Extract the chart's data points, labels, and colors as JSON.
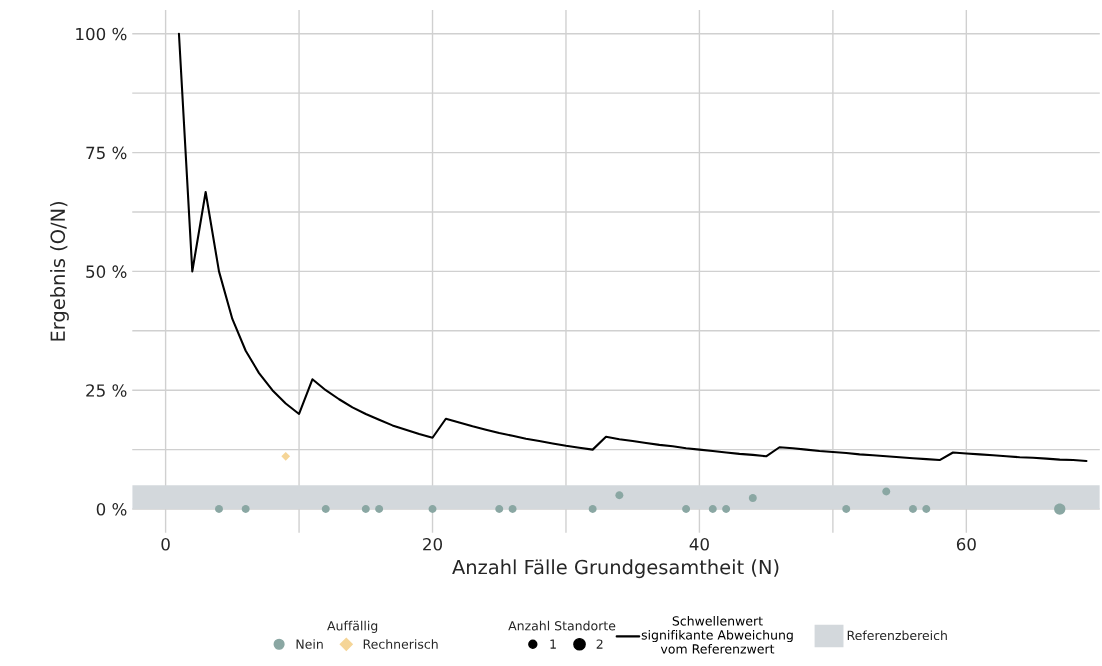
{
  "chart_data": {
    "type": "bubble",
    "xlabel": "Anzahl Fälle Grundgesamtheit (N)",
    "ylabel": "Ergebnis (O/N)",
    "legend_title": "Auffällig",
    "annotations": [
      "Anzahl Standorte"
    ],
    "xlim": [
      -2.5,
      70
    ],
    "xticks": [
      0,
      {
        "value": 10,
        "label": null
      },
      20,
      {
        "value": 30,
        "label": null
      },
      40,
      {
        "value": 50,
        "label": null
      },
      60
    ],
    "ylim": [
      -5,
      105
    ],
    "yticks": [
      {
        "value": 0,
        "label": "0 %"
      },
      {
        "value": 12.5,
        "label": null
      },
      {
        "value": 25,
        "label": "25 %"
      },
      {
        "value": 37.5,
        "label": null
      },
      {
        "value": 50,
        "label": "50 %"
      },
      {
        "value": 62.5,
        "label": null
      },
      {
        "value": 75,
        "label": "75 %"
      },
      {
        "value": 87.5,
        "label": null
      },
      {
        "value": 100,
        "label": "100 %"
      }
    ],
    "grid": true,
    "legend": "bottom",
    "size_legend": [
      1,
      2
    ],
    "bands": [
      {
        "axis": "y",
        "from": 0,
        "to": 5,
        "label": "Referenzbereich",
        "color": "#d3d8dc"
      }
    ],
    "series": [
      {
        "name": "Nein",
        "marker": "circle",
        "color": "#8aa7a3",
        "x": [
          4,
          6,
          12,
          15,
          16,
          20,
          25,
          26,
          32,
          34,
          39,
          41,
          42,
          44,
          51,
          54,
          56,
          57,
          67
        ],
        "values": [
          0,
          0,
          0,
          0,
          0,
          0,
          0,
          0,
          0,
          2.9,
          0,
          0,
          0,
          2.3,
          0,
          3.7,
          0,
          0,
          0
        ],
        "sizes": [
          1,
          1,
          1,
          1,
          1,
          1,
          1,
          1,
          1,
          1,
          1,
          1,
          1,
          1,
          1,
          1,
          1,
          1,
          2
        ]
      },
      {
        "name": "Rechnerisch",
        "marker": "diamond",
        "color": "#f5d597",
        "x": [
          9
        ],
        "values": [
          11.1
        ],
        "sizes": [
          1
        ]
      },
      {
        "name": "Schwellenwert\nsignifikante Abweichung\nvom Referenzwert",
        "type": "line",
        "color": "#000000",
        "line_style": "solid",
        "x": [
          1,
          2,
          3,
          4,
          5,
          6,
          7,
          8,
          9,
          10,
          11,
          12,
          13,
          14,
          15,
          16,
          17,
          18,
          19,
          20,
          21,
          22,
          23,
          24,
          25,
          26,
          27,
          28,
          29,
          30,
          31,
          32,
          33,
          34,
          35,
          36,
          37,
          38,
          39,
          40,
          41,
          42,
          43,
          44,
          45,
          46,
          47,
          48,
          49,
          50,
          51,
          52,
          53,
          54,
          55,
          56,
          57,
          58,
          59,
          60,
          61,
          62,
          63,
          64,
          65,
          66,
          67,
          68,
          69
        ],
        "values": [
          100,
          50,
          66.7,
          50,
          40,
          33.3,
          28.6,
          25,
          22.2,
          20,
          27.3,
          25,
          23.1,
          21.4,
          20,
          18.8,
          17.6,
          16.7,
          15.8,
          15,
          19.0,
          18.2,
          17.4,
          16.7,
          16,
          15.4,
          14.8,
          14.3,
          13.8,
          13.3,
          12.9,
          12.5,
          15.2,
          14.7,
          14.3,
          13.9,
          13.5,
          13.2,
          12.8,
          12.5,
          12.2,
          11.9,
          11.6,
          11.4,
          11.1,
          13.0,
          12.8,
          12.5,
          12.2,
          12,
          11.8,
          11.5,
          11.3,
          11.1,
          10.9,
          10.7,
          10.5,
          10.3,
          11.9,
          11.7,
          11.5,
          11.3,
          11.1,
          10.9,
          10.8,
          10.6,
          10.4,
          10.3,
          10.1
        ]
      }
    ]
  }
}
